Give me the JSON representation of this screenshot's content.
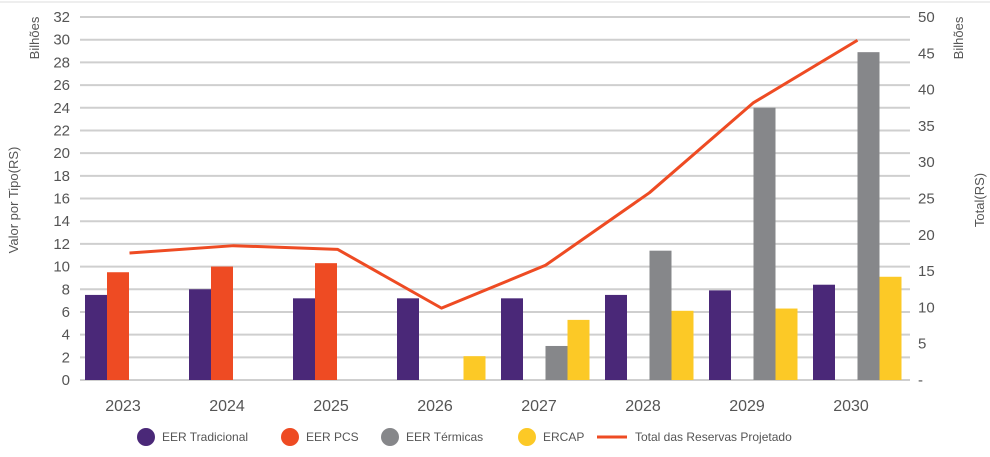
{
  "chart_data": {
    "type": "bar",
    "categories": [
      "2023",
      "2024",
      "2025",
      "2026",
      "2027",
      "2028",
      "2029",
      "2030"
    ],
    "series": [
      {
        "name": "EER Tradicional",
        "axis": "left",
        "color": "#4a2878",
        "values": [
          7.5,
          8.0,
          7.2,
          7.2,
          7.2,
          7.5,
          7.9,
          8.4
        ]
      },
      {
        "name": "EER PCS",
        "axis": "left",
        "color": "#ee4b23",
        "values": [
          9.5,
          10.0,
          10.3,
          null,
          null,
          null,
          null,
          null
        ]
      },
      {
        "name": "EER Térmicas",
        "axis": "left",
        "color": "#86878a",
        "values": [
          null,
          null,
          null,
          null,
          3.0,
          11.4,
          24.0,
          28.9
        ]
      },
      {
        "name": "ERCAP",
        "axis": "left",
        "color": "#fcc926",
        "values": [
          null,
          null,
          null,
          2.1,
          5.3,
          6.1,
          6.3,
          9.1
        ]
      },
      {
        "name": "Total das Reservas Projetado",
        "type": "line",
        "axis": "right",
        "color": "#ee4b23",
        "values": [
          17.5,
          18.5,
          18.0,
          9.9,
          15.8,
          25.8,
          38.2,
          46.8
        ]
      }
    ],
    "ylabel": "Valor por Tipo(RS)",
    "ylabel_unit": "Bilhões",
    "y2label": "Total(RS)",
    "y2label_unit": "Bilhões",
    "ylim": [
      0,
      32
    ],
    "yticks": [
      "0",
      "2",
      "4",
      "6",
      "8",
      "10",
      "12",
      "14",
      "16",
      "18",
      "20",
      "22",
      "24",
      "26",
      "28",
      "30",
      "32"
    ],
    "y2lim": [
      0,
      50
    ],
    "y2ticks": [
      "-",
      "5",
      "10",
      "15",
      "20",
      "25",
      "30",
      "35",
      "40",
      "45",
      "50"
    ],
    "grid": true,
    "legend": "bottom"
  }
}
